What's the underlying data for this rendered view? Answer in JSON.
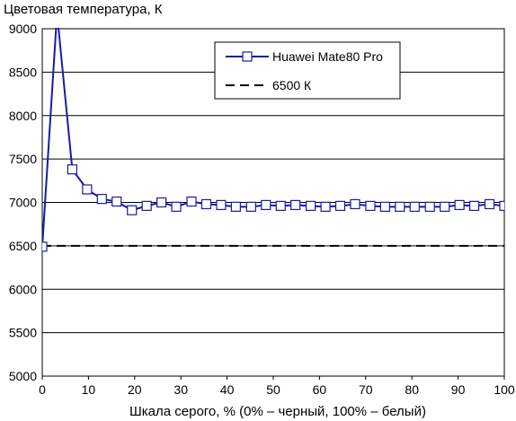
{
  "chart_data": {
    "type": "line",
    "title": "",
    "ylabel": "Цветовая температура, К",
    "xlabel": "Шкала серого, % (0% – черный, 100% – белый)",
    "xlim": [
      0,
      100
    ],
    "ylim": [
      5000,
      9000
    ],
    "x_ticks": [
      "0",
      "10",
      "20",
      "30",
      "40",
      "50",
      "60",
      "70",
      "80",
      "90",
      "100"
    ],
    "y_ticks": [
      "5000",
      "5500",
      "6000",
      "6500",
      "7000",
      "7500",
      "8000",
      "8500",
      "9000"
    ],
    "grid": "horizontal",
    "legend_position": "top-right",
    "series": [
      {
        "name": "Huawei Mate80 Pro",
        "color": "#1a1aa6",
        "marker": "square",
        "x": [
          0,
          3.2,
          6.5,
          9.7,
          12.9,
          16.1,
          19.4,
          22.6,
          25.8,
          29.0,
          32.3,
          35.5,
          38.7,
          41.9,
          45.2,
          48.4,
          51.6,
          54.8,
          58.1,
          61.3,
          64.5,
          67.7,
          71.0,
          74.2,
          77.4,
          80.6,
          83.9,
          87.1,
          90.3,
          93.5,
          96.8,
          100
        ],
        "y": [
          6490,
          9180,
          7380,
          7150,
          7040,
          7010,
          6910,
          6960,
          7000,
          6950,
          7010,
          6980,
          6970,
          6950,
          6950,
          6970,
          6960,
          6970,
          6960,
          6950,
          6960,
          6980,
          6960,
          6950,
          6950,
          6950,
          6950,
          6950,
          6970,
          6960,
          6980,
          6960
        ]
      },
      {
        "name": "6500 К",
        "color": "#000000",
        "style": "dashed",
        "x": [
          0,
          100
        ],
        "y": [
          6500,
          6500
        ]
      }
    ]
  }
}
